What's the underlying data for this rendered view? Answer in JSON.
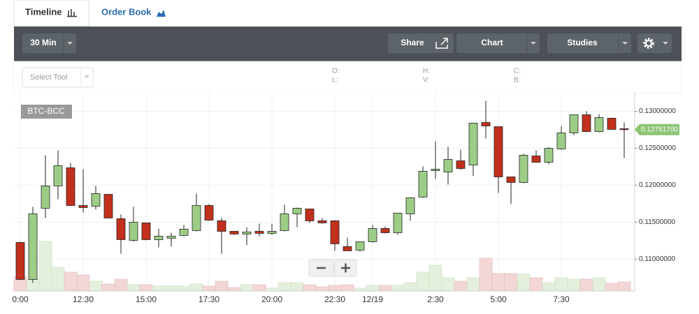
{
  "tabs": [
    "Timeline",
    "Order Book"
  ],
  "toolbar": {
    "interval": "30 Min",
    "share": "Share",
    "chart": "Chart",
    "studies": "Studies"
  },
  "tool_select": "Select Tool",
  "ohlc_fields": [
    "O:",
    "L:",
    "H:",
    "V:",
    "C:",
    "B:"
  ],
  "chart_data": {
    "type": "candlestick",
    "symbol": "BTC-BCC",
    "categories": [
      "0:00",
      null,
      null,
      null,
      null,
      "12:30",
      null,
      null,
      null,
      null,
      "15:00",
      null,
      null,
      null,
      null,
      "17:30",
      null,
      null,
      null,
      null,
      "20:00",
      null,
      null,
      null,
      null,
      "22:30",
      null,
      null,
      "12/19",
      null,
      null,
      null,
      null,
      "2:30",
      null,
      null,
      null,
      null,
      "5:00",
      null,
      null,
      null,
      null,
      "7:30",
      null,
      null,
      null,
      null,
      null
    ],
    "open": [
      0.11226,
      0.10726,
      0.11689,
      0.11991,
      0.12236,
      0.11726,
      0.11717,
      0.11877,
      0.11547,
      0.11255,
      0.11491,
      0.11264,
      0.11283,
      0.11321,
      0.11387,
      0.11726,
      0.11519,
      0.11377,
      0.1134,
      0.11377,
      0.11349,
      0.11387,
      0.11613,
      0.11679,
      0.11519,
      0.11519,
      0.1117,
      0.11123,
      0.11236,
      0.11415,
      0.11358,
      0.11613,
      0.1184,
      0.12198,
      0.12179,
      0.1233,
      0.12274,
      0.12849,
      0.12792,
      0.12113,
      0.12038,
      0.12396,
      0.12311,
      0.12491,
      0.12708,
      0.12953,
      0.12726,
      0.12906,
      0.12764
    ],
    "high": [
      0.11236,
      0.11708,
      0.12406,
      0.12472,
      0.12302,
      0.12217,
      0.11991,
      0.11877,
      0.11604,
      0.11708,
      0.11491,
      0.11415,
      0.11358,
      0.11462,
      0.11887,
      0.11745,
      0.11557,
      0.11377,
      0.11434,
      0.11481,
      0.11481,
      0.11736,
      0.11698,
      0.11679,
      0.11557,
      0.11528,
      0.11292,
      0.11236,
      0.11462,
      0.11443,
      0.11623,
      0.1183,
      0.12255,
      0.12594,
      0.12519,
      0.12481,
      0.1284,
      0.13142,
      0.12792,
      0.12113,
      0.12425,
      0.12472,
      0.12519,
      0.12802,
      0.12953,
      0.13,
      0.12962,
      0.12915,
      0.12849
    ],
    "low": [
      0.10717,
      0.10679,
      0.11557,
      0.11811,
      0.11717,
      0.11632,
      0.1167,
      0.11557,
      0.11075,
      0.11236,
      0.11255,
      0.1116,
      0.1117,
      0.11311,
      0.11377,
      0.11519,
      0.11075,
      0.1133,
      0.11189,
      0.11311,
      0.1133,
      0.11377,
      0.11434,
      0.11491,
      0.11481,
      0.11113,
      0.11113,
      0.11104,
      0.11226,
      0.11349,
      0.1133,
      0.11519,
      0.1183,
      0.12085,
      0.12009,
      0.12208,
      0.12123,
      0.12632,
      0.11896,
      0.11745,
      0.12028,
      0.12302,
      0.12283,
      0.12481,
      0.12679,
      0.12717,
      0.12717,
      0.12755,
      0.12368
    ],
    "close": [
      0.10726,
      0.11613,
      0.11991,
      0.12264,
      0.11726,
      0.11698,
      0.11887,
      0.11557,
      0.11264,
      0.115,
      0.11264,
      0.11311,
      0.11311,
      0.11406,
      0.11726,
      0.11528,
      0.11377,
      0.1134,
      0.11368,
      0.11349,
      0.11377,
      0.11613,
      0.11689,
      0.11519,
      0.11491,
      0.11208,
      0.11113,
      0.11236,
      0.11415,
      0.11358,
      0.11623,
      0.1183,
      0.12189,
      0.12217,
      0.12349,
      0.12226,
      0.1284,
      0.12802,
      0.12113,
      0.12038,
      0.12406,
      0.12311,
      0.125,
      0.12708,
      0.12953,
      0.12726,
      0.12915,
      0.12755,
      0.127517
    ],
    "volume": [
      20,
      17,
      71,
      34,
      27,
      23,
      14,
      10,
      17,
      9,
      9,
      7,
      7,
      7,
      10,
      7,
      14,
      5,
      9,
      9,
      4,
      12,
      12,
      9,
      6,
      8,
      9,
      4,
      8,
      8,
      8,
      12,
      27,
      37,
      19,
      14,
      19,
      47,
      25,
      25,
      24,
      19,
      12,
      19,
      17,
      17,
      19,
      11,
      13
    ],
    "vlim": [
      0,
      100
    ],
    "last_price_label": "0.12751700",
    "ylim": [
      0.1057,
      0.1325
    ],
    "yticks": [
      {
        "value": 0.11,
        "label": "0.11000000"
      },
      {
        "value": 0.115,
        "label": "0.11500000"
      },
      {
        "value": 0.12,
        "label": "0.12000000"
      },
      {
        "value": 0.125,
        "label": "0.12500000"
      },
      {
        "value": 0.13,
        "label": "0.13000000"
      }
    ],
    "grid": true,
    "up_color": "#9ccc86",
    "down_color": "#c1301c",
    "up_volume_color": "#e4f0dc",
    "down_volume_color": "#f3d6d6",
    "last_price_color": "#8cc474"
  }
}
